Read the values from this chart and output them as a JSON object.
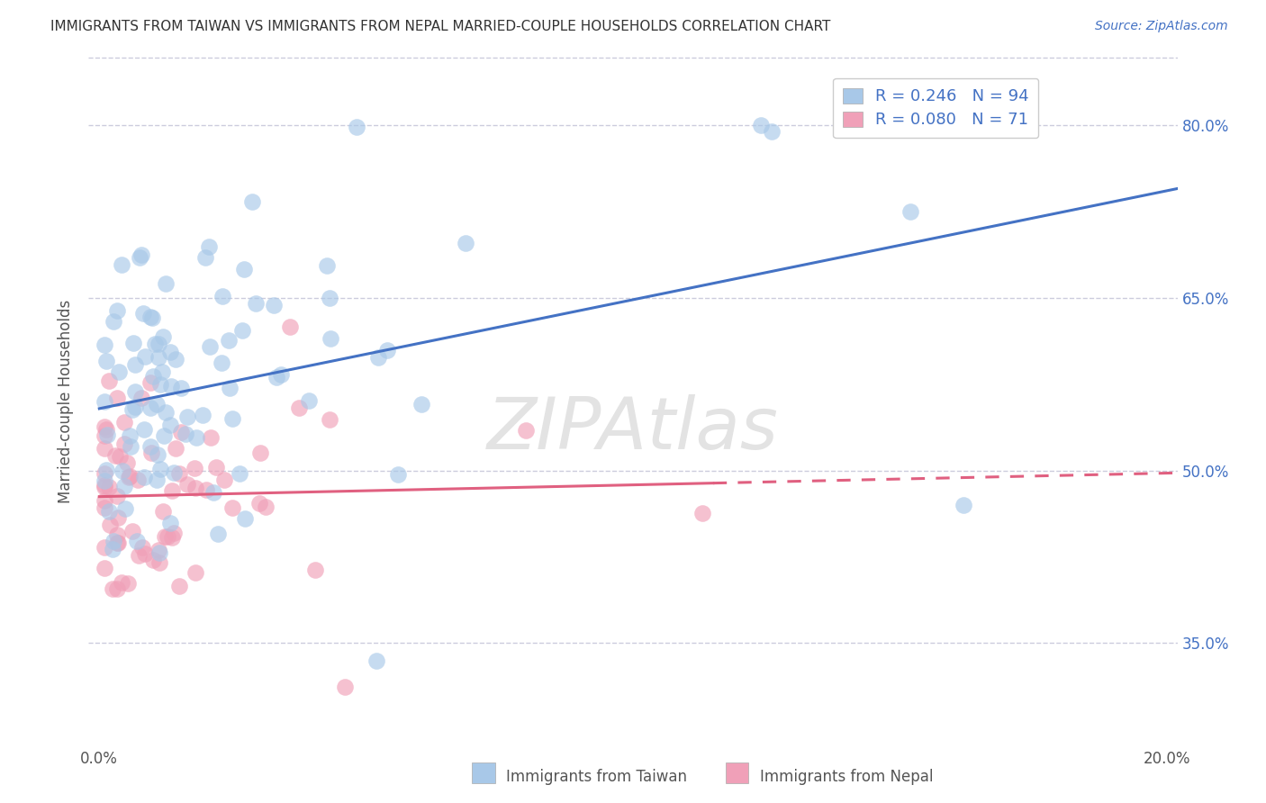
{
  "title": "IMMIGRANTS FROM TAIWAN VS IMMIGRANTS FROM NEPAL MARRIED-COUPLE HOUSEHOLDS CORRELATION CHART",
  "source": "Source: ZipAtlas.com",
  "ylabel": "Married-couple Households",
  "taiwan_R": 0.246,
  "taiwan_N": 94,
  "nepal_R": 0.08,
  "nepal_N": 71,
  "taiwan_color": "#a8c8e8",
  "nepal_color": "#f0a0b8",
  "taiwan_line_color": "#4472c4",
  "nepal_line_color": "#e06080",
  "background_color": "#ffffff",
  "grid_color": "#ccccdd",
  "watermark": "ZIPAtlas",
  "xlim": [
    -0.002,
    0.202
  ],
  "ylim": [
    0.26,
    0.86
  ],
  "yticks": [
    0.35,
    0.5,
    0.65,
    0.8
  ],
  "ytick_labels": [
    "35.0%",
    "50.0%",
    "65.0%",
    "80.0%"
  ],
  "xticks": [
    0.0,
    0.05,
    0.1,
    0.15,
    0.2
  ],
  "xtick_labels": [
    "0.0%",
    "",
    "",
    "",
    "20.0%"
  ]
}
